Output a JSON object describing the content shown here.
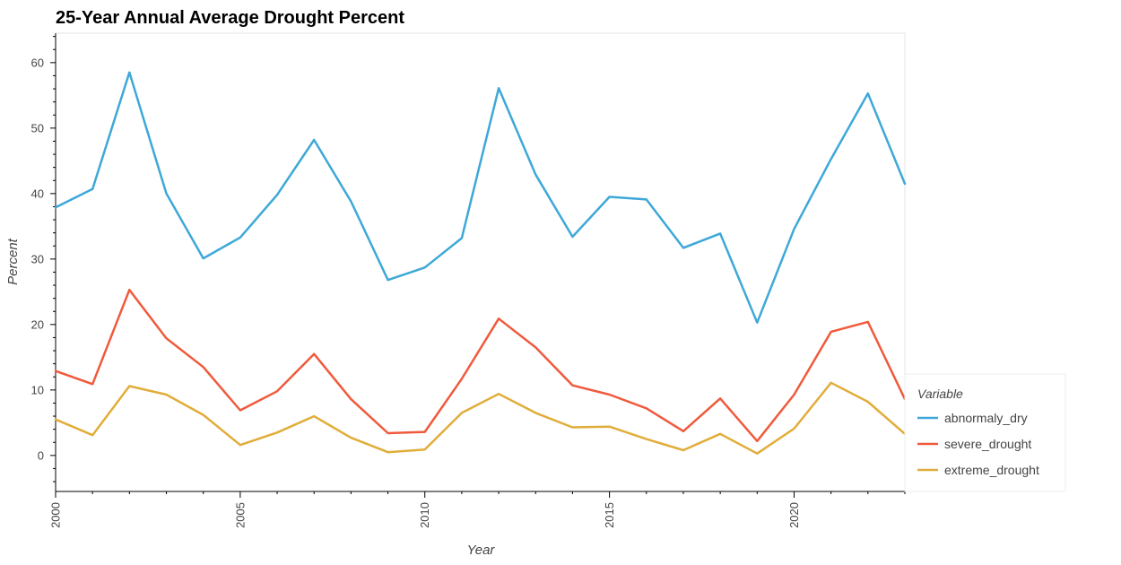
{
  "chart_data": {
    "type": "line",
    "title": "25-Year Annual Average Drought Percent",
    "xlabel": "Year",
    "ylabel": "Percent",
    "xlim": [
      2000,
      2023
    ],
    "ylim": [
      -5.5,
      64.5
    ],
    "x_major_ticks": [
      2000,
      2005,
      2010,
      2015,
      2020
    ],
    "y_major_ticks": [
      0,
      10,
      20,
      30,
      40,
      50,
      60
    ],
    "grid": false,
    "legend_title": "Variable",
    "legend_position": "bottom-right",
    "x": [
      2000,
      2001,
      2002,
      2003,
      2004,
      2005,
      2006,
      2007,
      2008,
      2009,
      2010,
      2011,
      2012,
      2013,
      2014,
      2015,
      2016,
      2017,
      2018,
      2019,
      2020,
      2021,
      2022,
      2023
    ],
    "series": [
      {
        "name": "abnormaly_dry",
        "color": "#3ea8d8",
        "values": [
          37.9,
          40.7,
          58.5,
          40.0,
          30.1,
          33.3,
          39.8,
          48.2,
          38.8,
          26.8,
          28.7,
          33.2,
          56.1,
          42.9,
          33.4,
          39.5,
          39.1,
          31.7,
          33.9,
          20.3,
          34.6,
          45.3,
          55.3,
          41.5
        ]
      },
      {
        "name": "severe_drought",
        "color": "#f05a3c",
        "values": [
          12.9,
          10.9,
          25.3,
          17.9,
          13.5,
          6.9,
          9.8,
          15.5,
          8.6,
          3.4,
          3.6,
          11.7,
          20.9,
          16.5,
          10.7,
          9.3,
          7.2,
          3.7,
          8.7,
          2.2,
          9.3,
          18.9,
          20.4,
          8.6
        ]
      },
      {
        "name": "extreme_drought",
        "color": "#e1ad3a",
        "values": [
          5.5,
          3.1,
          10.6,
          9.3,
          6.2,
          1.6,
          3.5,
          6.0,
          2.7,
          0.5,
          0.9,
          6.5,
          9.4,
          6.5,
          4.3,
          4.4,
          2.5,
          0.8,
          3.3,
          0.3,
          4.1,
          11.1,
          8.2,
          3.3
        ]
      }
    ]
  }
}
